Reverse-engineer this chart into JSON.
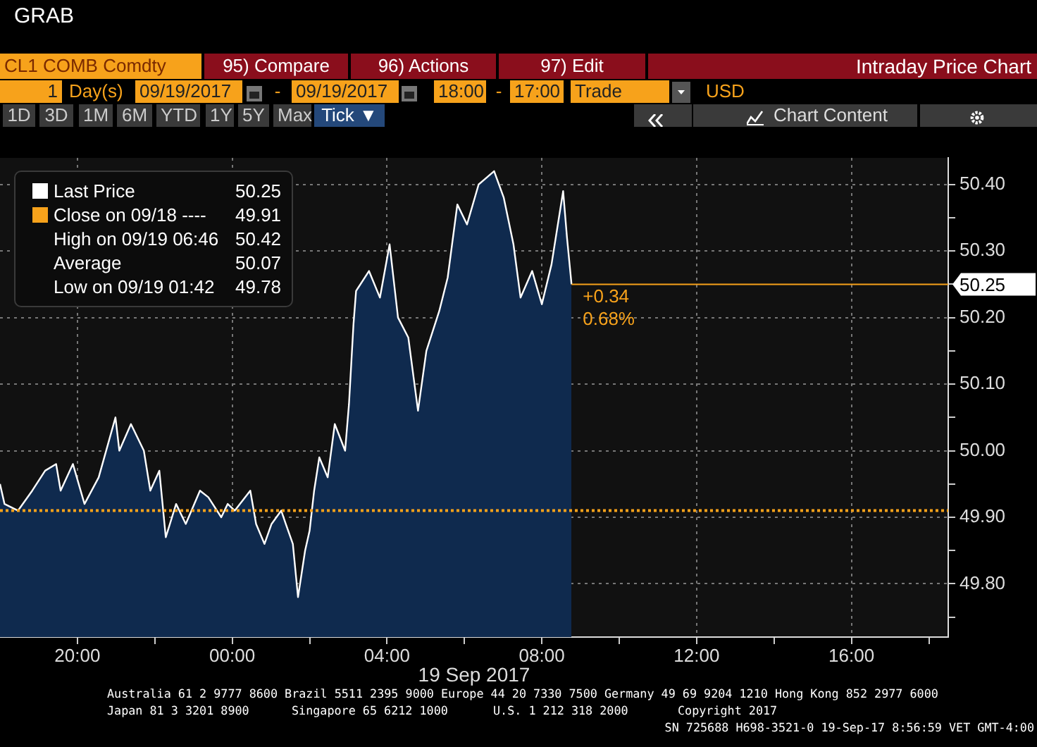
{
  "chart_data": {
    "type": "area",
    "title": "Intraday Price Chart",
    "xlabel": "19 Sep 2017",
    "x": [
      "2017-09-18T18:00",
      "2017-09-18T18:07",
      "2017-09-18T18:28",
      "2017-09-18T18:50",
      "2017-09-18T19:10",
      "2017-09-18T19:27",
      "2017-09-18T19:34",
      "2017-09-18T19:53",
      "2017-09-18T20:11",
      "2017-09-18T20:33",
      "2017-09-18T20:59",
      "2017-09-18T21:05",
      "2017-09-18T21:23",
      "2017-09-18T21:43",
      "2017-09-18T21:53",
      "2017-09-18T22:07",
      "2017-09-18T22:17",
      "2017-09-18T22:33",
      "2017-09-18T22:48",
      "2017-09-18T23:10",
      "2017-09-18T23:23",
      "2017-09-18T23:43",
      "2017-09-18T23:53",
      "2017-09-19T00:04",
      "2017-09-19T00:28",
      "2017-09-19T00:37",
      "2017-09-19T00:50",
      "2017-09-19T01:01",
      "2017-09-19T01:16",
      "2017-09-19T01:23",
      "2017-09-19T01:34",
      "2017-09-19T01:42",
      "2017-09-19T01:53",
      "2017-09-19T02:00",
      "2017-09-19T02:07",
      "2017-09-19T02:15",
      "2017-09-19T02:28",
      "2017-09-19T02:39",
      "2017-09-19T02:55",
      "2017-09-19T03:01",
      "2017-09-19T03:08",
      "2017-09-19T03:12",
      "2017-09-19T03:32",
      "2017-09-19T03:49",
      "2017-09-19T04:04",
      "2017-09-19T04:17",
      "2017-09-19T04:33",
      "2017-09-19T04:48",
      "2017-09-19T05:01",
      "2017-09-19T05:21",
      "2017-09-19T05:34",
      "2017-09-19T05:49",
      "2017-09-19T06:04",
      "2017-09-19T06:22",
      "2017-09-19T06:46",
      "2017-09-19T07:01",
      "2017-09-19T07:16",
      "2017-09-19T07:27",
      "2017-09-19T07:45",
      "2017-09-19T08:00",
      "2017-09-19T08:15",
      "2017-09-19T08:33",
      "2017-09-19T08:39",
      "2017-09-19T08:46"
    ],
    "series": [
      {
        "name": "Last Price",
        "color": "#ffffff",
        "values": [
          49.95,
          49.92,
          49.91,
          49.94,
          49.97,
          49.98,
          49.94,
          49.98,
          49.92,
          49.96,
          50.05,
          50.0,
          50.04,
          50.0,
          49.94,
          49.97,
          49.87,
          49.92,
          49.89,
          49.94,
          49.93,
          49.9,
          49.92,
          49.91,
          49.94,
          49.89,
          49.86,
          49.89,
          49.91,
          49.89,
          49.86,
          49.78,
          49.85,
          49.88,
          49.94,
          49.99,
          49.96,
          50.04,
          50.0,
          50.07,
          50.19,
          50.24,
          50.27,
          50.23,
          50.31,
          50.2,
          50.17,
          50.06,
          50.15,
          50.21,
          50.26,
          50.37,
          50.34,
          50.4,
          50.42,
          50.38,
          50.31,
          50.23,
          50.27,
          50.22,
          50.28,
          50.39,
          50.32,
          50.25
        ]
      }
    ],
    "xlim": [
      "2017-09-18T18:00",
      "2017-09-19T18:30"
    ],
    "xticks": [
      {
        "value": "2017-09-18T20:00",
        "label": "20:00"
      },
      {
        "value": "2017-09-18T22:00",
        "label": null
      },
      {
        "value": "2017-09-19T00:00",
        "label": "00:00"
      },
      {
        "value": "2017-09-19T02:00",
        "label": null
      },
      {
        "value": "2017-09-19T04:00",
        "label": "04:00"
      },
      {
        "value": "2017-09-19T06:00",
        "label": null
      },
      {
        "value": "2017-09-19T08:00",
        "label": "08:00"
      },
      {
        "value": "2017-09-19T10:00",
        "label": null
      },
      {
        "value": "2017-09-19T12:00",
        "label": "12:00"
      },
      {
        "value": "2017-09-19T14:00",
        "label": null
      },
      {
        "value": "2017-09-19T16:00",
        "label": "16:00"
      },
      {
        "value": "2017-09-19T18:00",
        "label": null
      }
    ],
    "ylim": [
      49.72,
      50.44
    ],
    "yticks": [
      {
        "value": 49.75,
        "label": null
      },
      {
        "value": 49.8,
        "label": "49.80"
      },
      {
        "value": 49.85,
        "label": null
      },
      {
        "value": 49.9,
        "label": "49.90"
      },
      {
        "value": 49.95,
        "label": null
      },
      {
        "value": 50,
        "label": "50.00"
      },
      {
        "value": 50.05,
        "label": null
      },
      {
        "value": 50.1,
        "label": "50.10"
      },
      {
        "value": 50.15,
        "label": null
      },
      {
        "value": 50.2,
        "label": "50.20"
      },
      {
        "value": 50.25,
        "label": null
      },
      {
        "value": 50.3,
        "label": "50.30"
      },
      {
        "value": 50.35,
        "label": null
      },
      {
        "value": 50.4,
        "label": "50.40"
      }
    ],
    "ref_lines": [
      {
        "axis": "y",
        "value": 49.91,
        "label": "Close on 09/18 ---- 49.91",
        "color": "#f7a21b",
        "line_style": "dotted"
      },
      {
        "axis": "y",
        "value": 50.25,
        "label": "50.25",
        "color": "#f7a21b",
        "line_style": "solid"
      }
    ],
    "grid": true,
    "legend": "top left",
    "marker": "none",
    "annotations": [
      "GRAB",
      "CL1 COMB Comdty",
      "95) Compare",
      "96) Actions",
      "97) Edit",
      "1",
      "Day(s)",
      "09/19/2017",
      "-",
      "09/19/2017",
      "18:00",
      "-",
      "17:00",
      "Trade",
      "USD",
      "1D",
      "3D",
      "1M",
      "6M",
      "YTD",
      "1Y",
      "5Y",
      "Max",
      "Tick ▼",
      "Chart Content",
      "High on 09/19 06:46 50.42",
      "Average 50.07",
      "Low on 09/19 01:42 49.78",
      "+0.34",
      "0.68%",
      "Australia 61 2 9777 8600 Brazil 5511 2395 9000 Europe 44 20 7330 7500 Germany 49 69 9204 1210 Hong Kong 852 2977 6000",
      "Japan 81 3 3201 8900",
      "Singapore 65 6212 1000",
      "U.S. 1 212 318 2000",
      "Copyright 2017",
      "SN 725688 H698-3521-0 19-Sep-17 8:56:59 VET GMT-4:00"
    ]
  }
}
